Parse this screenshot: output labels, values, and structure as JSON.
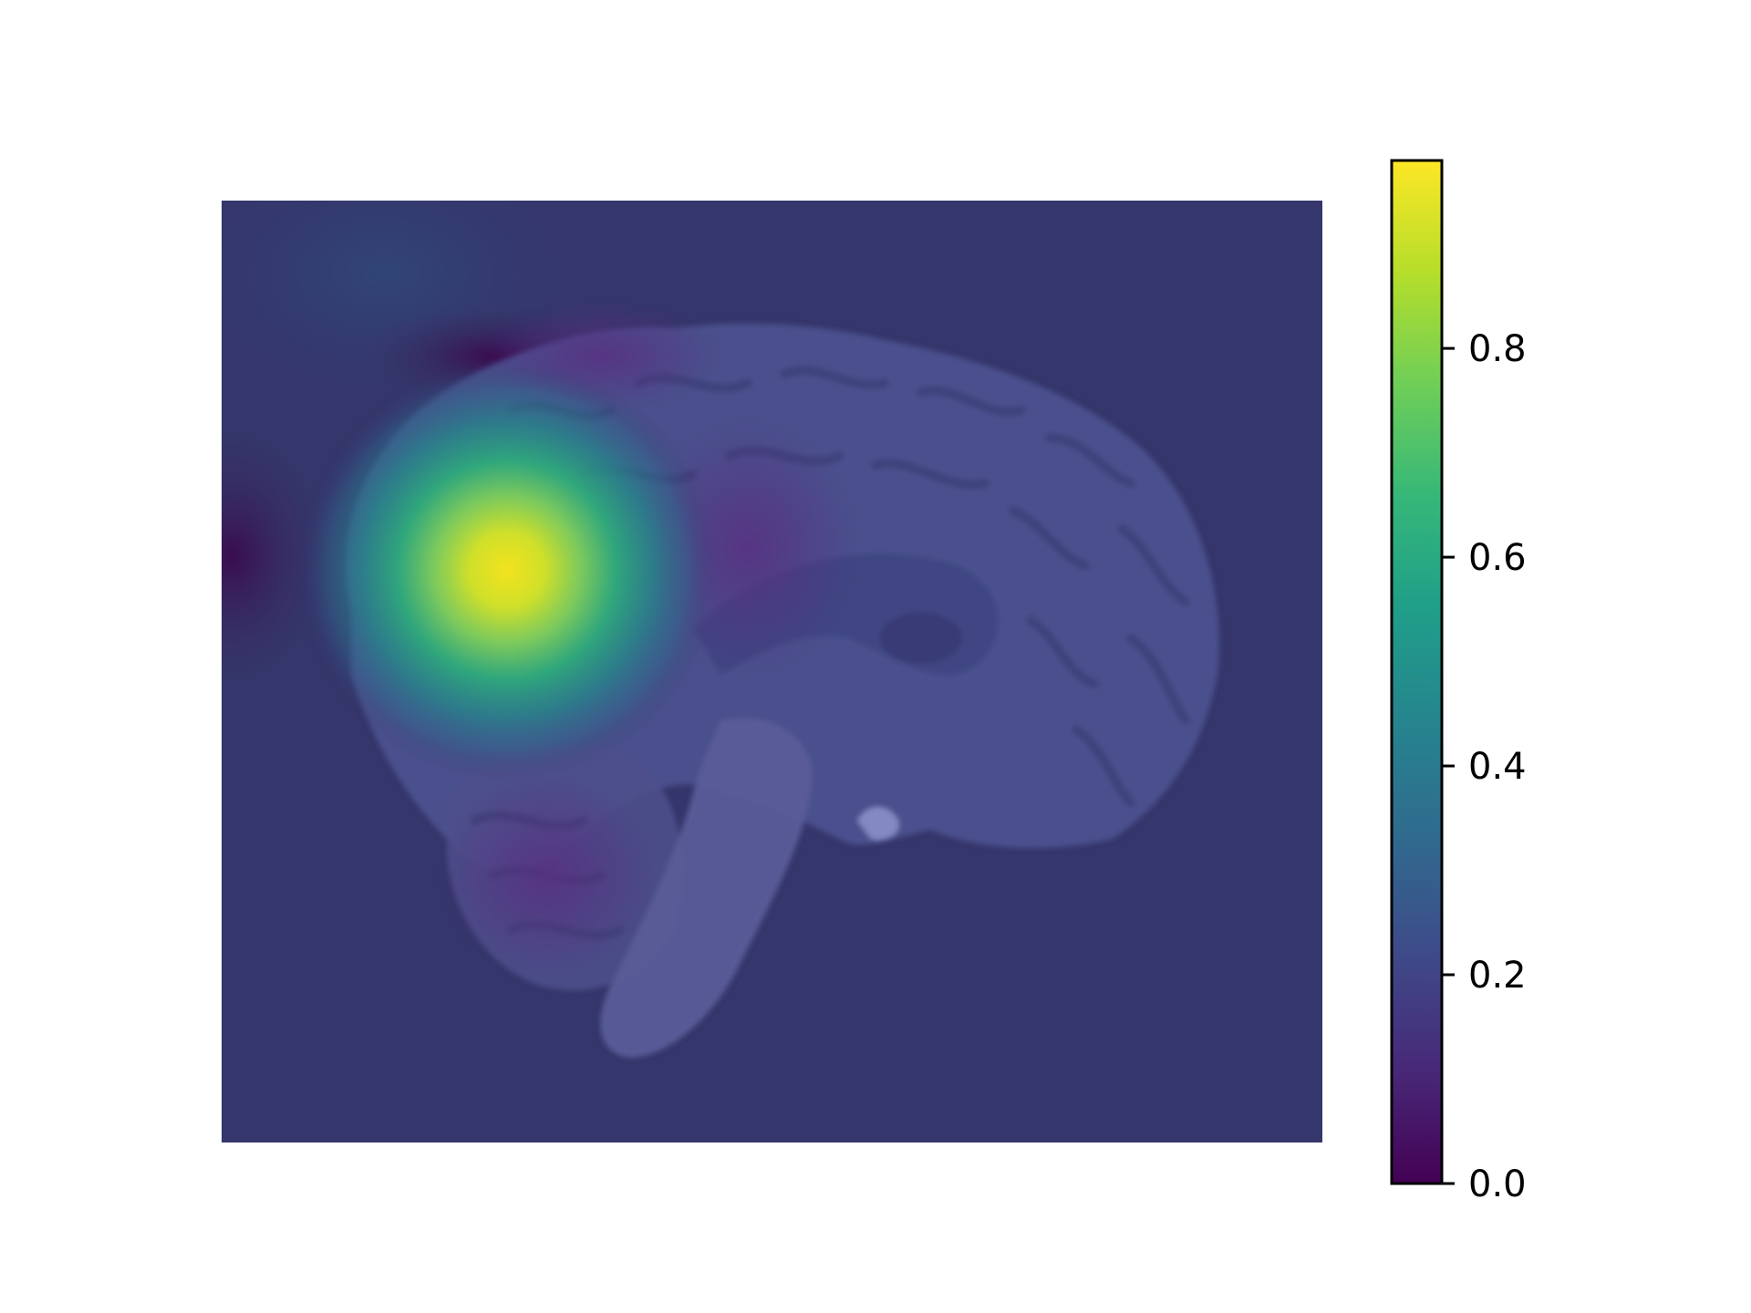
{
  "chart_data": {
    "type": "heatmap",
    "title": "",
    "xlabel": "",
    "ylabel": "",
    "description_axes": "off",
    "underlay": "sagittal-brain-mri",
    "colormap": "viridis",
    "colormap_stops": [
      "#440154",
      "#482878",
      "#3e4989",
      "#31688e",
      "#26828e",
      "#1f9e89",
      "#35b779",
      "#6ece58",
      "#b5de2b",
      "#fde725"
    ],
    "colorbar": {
      "range": [
        0.0,
        0.98
      ],
      "ticks": [
        0.0,
        0.2,
        0.4,
        0.6,
        0.8
      ],
      "tick_labels": [
        "0.0",
        "0.2",
        "0.4",
        "0.6",
        "0.8"
      ],
      "position": "right"
    },
    "overlay_background_color": "#35366b",
    "peak_value": 0.98
  }
}
